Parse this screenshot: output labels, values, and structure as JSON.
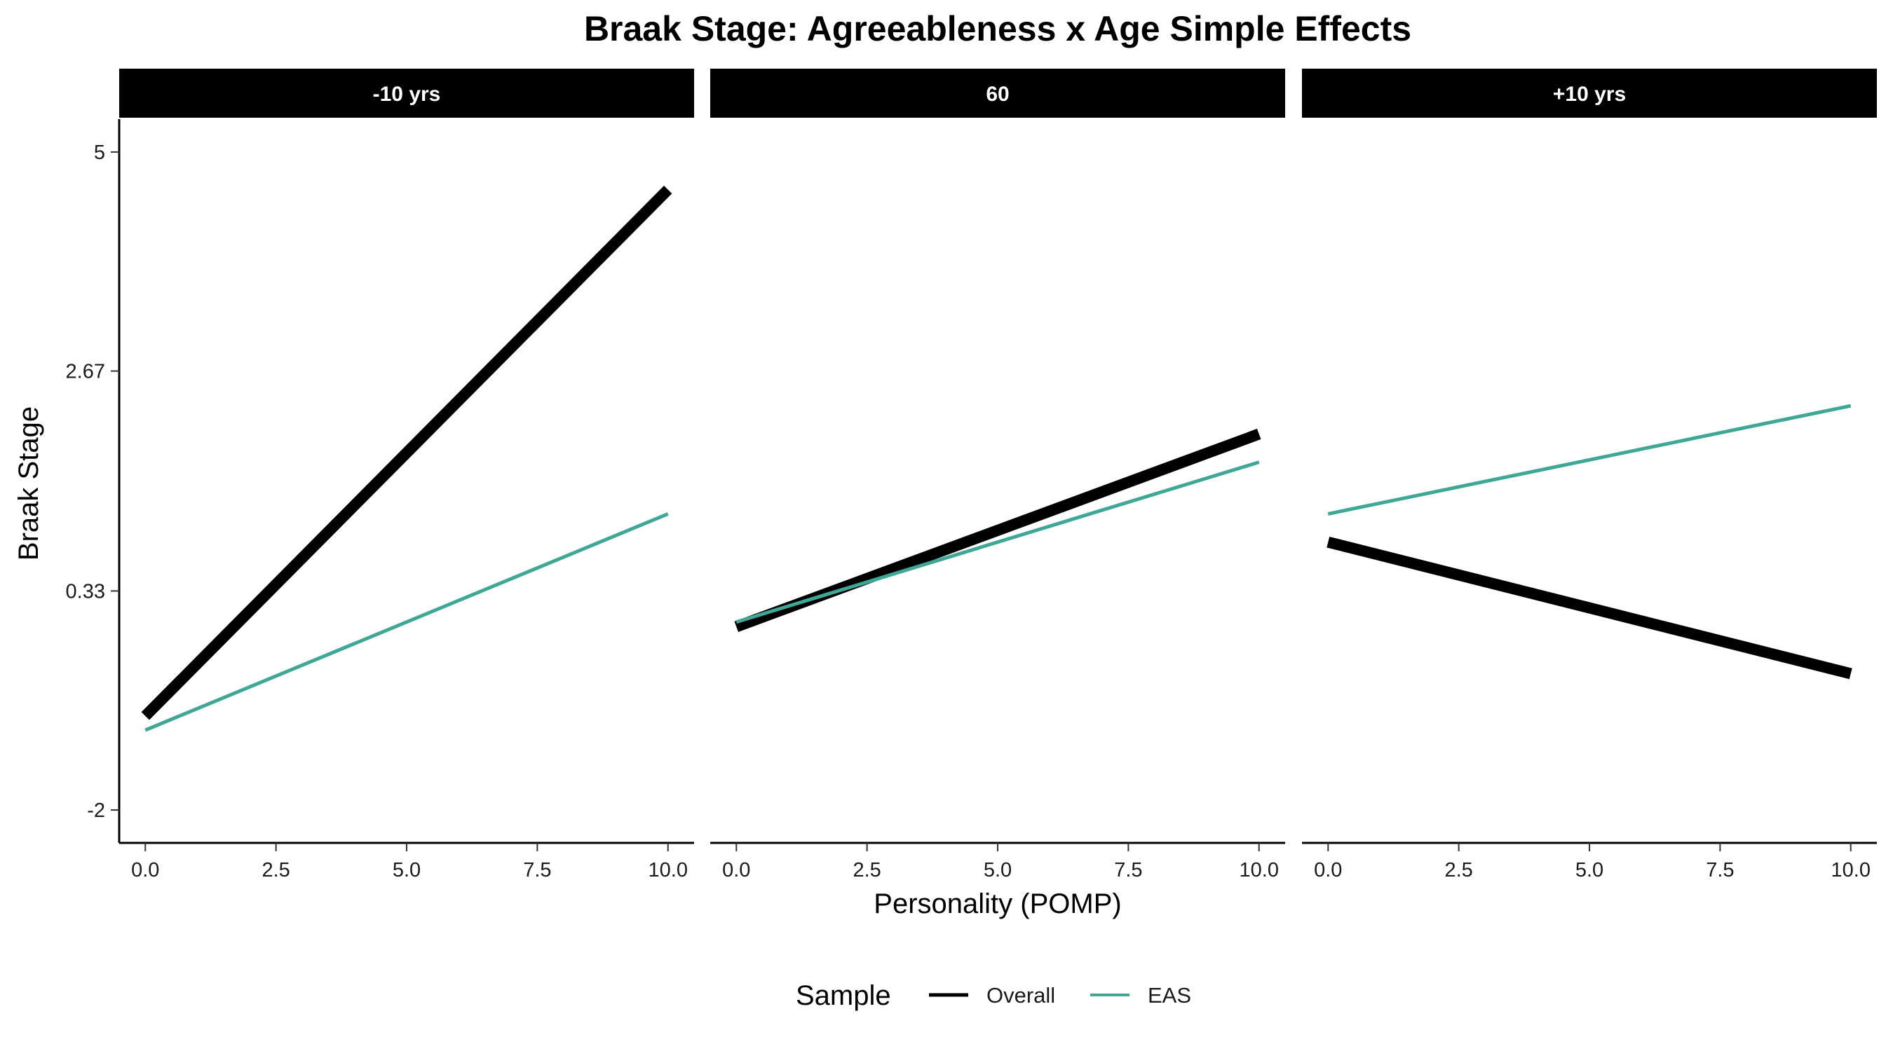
{
  "chart_data": {
    "type": "line",
    "title": "Braak Stage: Agreeableness x Age Simple Effects",
    "xlabel": "Personality (POMP)",
    "ylabel": "Braak Stage",
    "xlim": [
      -0.5,
      10.5
    ],
    "ylim": [
      -2.35,
      5.35
    ],
    "x_ticks": [
      0,
      2.5,
      5,
      7.5,
      10
    ],
    "x_tick_labels": [
      "0.0",
      "2.5",
      "5.0",
      "7.5",
      "10.0"
    ],
    "y_ticks": [
      -2,
      0.33,
      2.67,
      5
    ],
    "y_tick_labels": [
      "-2",
      "0.33",
      "2.67",
      "5"
    ],
    "grid": false,
    "legend": {
      "title": "Sample",
      "position": "bottom"
    },
    "series_styles": [
      {
        "name": "Overall",
        "color": "#000000",
        "width": "thick"
      },
      {
        "name": "EAS",
        "color": "#3fa796",
        "width": "thin"
      }
    ],
    "panels": [
      {
        "label": "-10 yrs",
        "series": [
          {
            "name": "Overall",
            "x": [
              0,
              10
            ],
            "y": [
              -1.0,
              4.6
            ]
          },
          {
            "name": "EAS",
            "x": [
              0,
              10
            ],
            "y": [
              -1.15,
              1.15
            ]
          }
        ]
      },
      {
        "label": "60",
        "series": [
          {
            "name": "Overall",
            "x": [
              0,
              10
            ],
            "y": [
              -0.05,
              2.0
            ]
          },
          {
            "name": "EAS",
            "x": [
              0,
              10
            ],
            "y": [
              0.0,
              1.7
            ]
          }
        ]
      },
      {
        "label": "+10 yrs",
        "series": [
          {
            "name": "Overall",
            "x": [
              0,
              10
            ],
            "y": [
              0.85,
              -0.55
            ]
          },
          {
            "name": "EAS",
            "x": [
              0,
              10
            ],
            "y": [
              1.15,
              2.3
            ]
          }
        ]
      }
    ]
  }
}
